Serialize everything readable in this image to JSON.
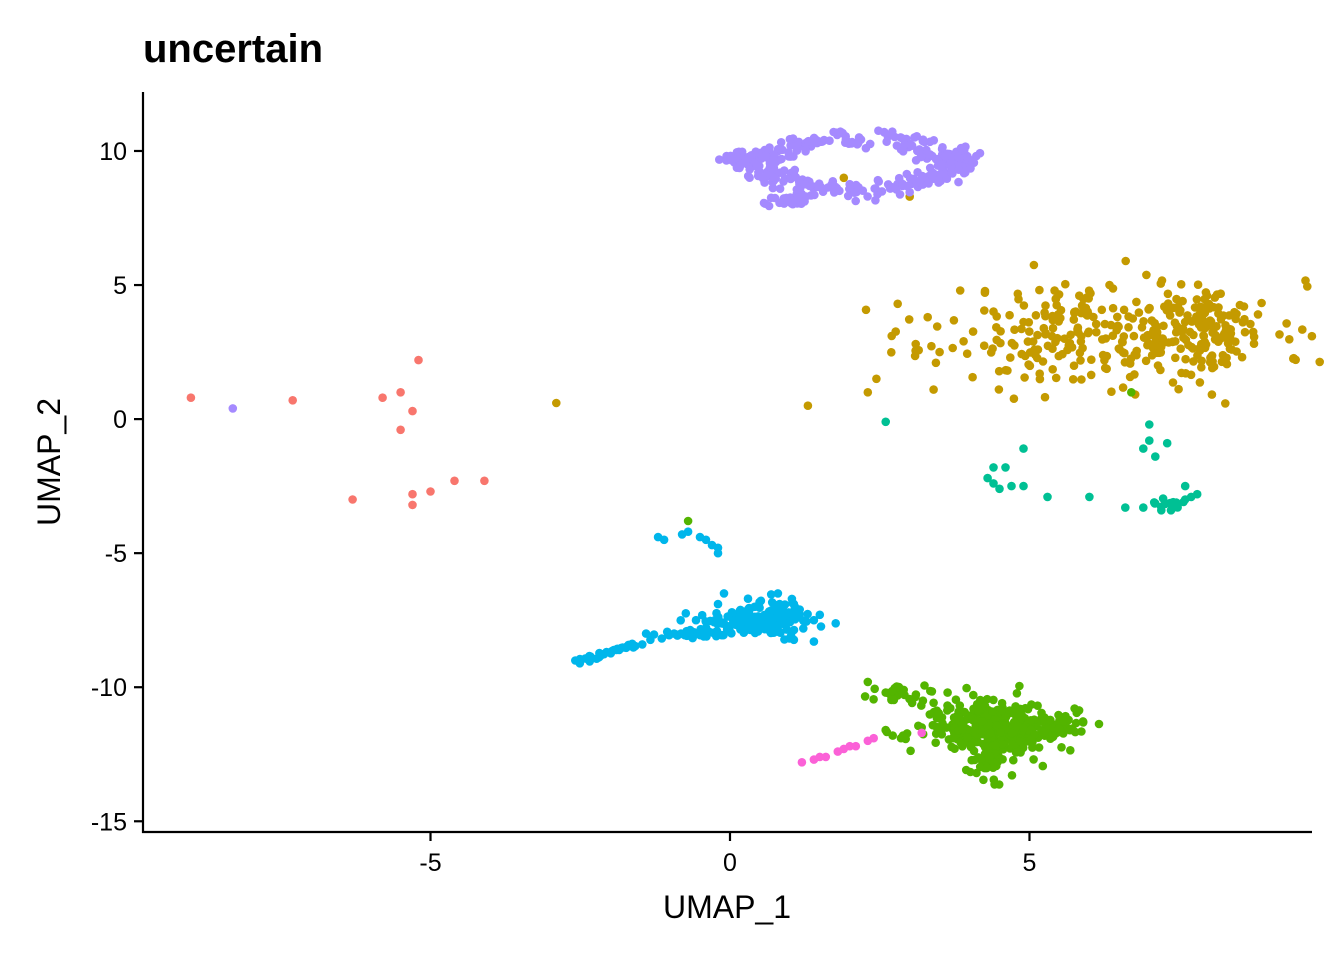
{
  "chart_data": {
    "type": "scatter",
    "title": "uncertain",
    "xlabel": "UMAP_1",
    "ylabel": "UMAP_2",
    "xlim": [
      -9.8,
      9.7
    ],
    "ylim": [
      -15.4,
      12.2
    ],
    "x_ticks": [
      -5,
      0,
      5
    ],
    "x_tick_labels": [
      "-5",
      "0",
      "5"
    ],
    "y_ticks": [
      10,
      5,
      0,
      -5,
      -10,
      -15
    ],
    "y_tick_labels": [
      "10",
      "5",
      "0",
      "-5",
      "-10",
      "-15"
    ],
    "grid": false,
    "legend": "none",
    "series": [
      {
        "color": "#F8766D",
        "points": [
          [
            -9.0,
            0.8
          ],
          [
            -7.3,
            0.7
          ],
          [
            -5.8,
            0.8
          ],
          [
            -5.5,
            1.0
          ],
          [
            -5.2,
            2.2
          ],
          [
            -5.3,
            0.3
          ],
          [
            -5.5,
            -0.4
          ],
          [
            -6.3,
            -3.0
          ],
          [
            -5.3,
            -2.8
          ],
          [
            -5.3,
            -3.2
          ],
          [
            -5.0,
            -2.7
          ],
          [
            -4.6,
            -2.3
          ],
          [
            -4.1,
            -2.3
          ]
        ],
        "clusters": []
      },
      {
        "color": "#C49A00",
        "points": [
          [
            -2.9,
            0.6
          ],
          [
            1.3,
            0.5
          ],
          [
            2.3,
            1.0
          ],
          [
            3.4,
            1.1
          ],
          [
            2.8,
            4.3
          ],
          [
            2.7,
            3.1
          ],
          [
            3.1,
            2.8
          ],
          [
            3.9,
            2.9
          ],
          [
            3.5,
            2.5
          ],
          [
            3.3,
            3.8
          ],
          [
            3.0,
            8.3
          ],
          [
            1.9,
            9.0
          ],
          [
            2.8,
            -10.3
          ]
        ],
        "clusters": [
          {
            "cx": 6.3,
            "cy": 3.2,
            "rx": 2.6,
            "ry": 1.8,
            "n": 290,
            "seed": 11
          },
          {
            "cx": 8.0,
            "cy": 3.3,
            "rx": 0.75,
            "ry": 1.6,
            "n": 80,
            "seed": 12
          }
        ]
      },
      {
        "color": "#53B400",
        "points": [
          [
            -0.7,
            -3.8
          ],
          [
            2.3,
            -9.8
          ],
          [
            2.6,
            -10.2
          ],
          [
            2.6,
            -11.6
          ],
          [
            6.7,
            1.0
          ],
          [
            3.2,
            -11.5
          ],
          [
            2.9,
            -10.1
          ]
        ],
        "clusters": [
          {
            "cx": 4.4,
            "cy": -11.5,
            "rx": 1.05,
            "ry": 0.85,
            "n": 360,
            "seed": 21
          },
          {
            "cx": 4.3,
            "cy": -12.8,
            "rx": 0.35,
            "ry": 0.8,
            "n": 40,
            "seed": 22
          },
          {
            "cx": 3.0,
            "cy": -10.3,
            "rx": 0.5,
            "ry": 0.3,
            "n": 25,
            "seed": 23
          },
          {
            "cx": 5.4,
            "cy": -11.6,
            "rx": 0.45,
            "ry": 0.5,
            "n": 40,
            "seed": 24
          }
        ]
      },
      {
        "color": "#00C094",
        "points": [
          [
            2.6,
            -0.1
          ],
          [
            7.0,
            -0.2
          ],
          [
            7.0,
            -0.8
          ],
          [
            7.3,
            -0.9
          ],
          [
            6.9,
            -1.1
          ],
          [
            7.1,
            -1.4
          ],
          [
            4.9,
            -1.1
          ],
          [
            4.4,
            -1.8
          ],
          [
            4.6,
            -1.8
          ],
          [
            4.3,
            -2.2
          ],
          [
            4.4,
            -2.4
          ],
          [
            4.5,
            -2.6
          ],
          [
            4.7,
            -2.5
          ],
          [
            4.9,
            -2.5
          ],
          [
            5.3,
            -2.9
          ],
          [
            6.0,
            -2.9
          ],
          [
            6.6,
            -3.3
          ],
          [
            6.9,
            -3.3
          ],
          [
            7.4,
            -3.1
          ],
          [
            7.2,
            -3.4
          ],
          [
            7.6,
            -2.5
          ],
          [
            7.8,
            -2.8
          ],
          [
            7.6,
            -3.0
          ],
          [
            7.7,
            -2.9
          ]
        ],
        "clusters": [
          {
            "cx": 7.3,
            "cy": -3.2,
            "rx": 0.35,
            "ry": 0.2,
            "n": 14,
            "seed": 31
          }
        ]
      },
      {
        "color": "#00B6EB",
        "points": [
          [
            -1.2,
            -4.4
          ],
          [
            -1.1,
            -4.5
          ],
          [
            -0.8,
            -4.3
          ],
          [
            -0.7,
            -4.2
          ],
          [
            -0.5,
            -4.4
          ],
          [
            -0.4,
            -4.5
          ],
          [
            -0.3,
            -4.7
          ],
          [
            -0.2,
            -4.8
          ],
          [
            -0.2,
            -5.0
          ],
          [
            -1.4,
            -8.0
          ],
          [
            1.4,
            -8.3
          ],
          [
            1.5,
            -7.3
          ],
          [
            1.4,
            -7.5
          ],
          [
            -0.1,
            -6.5
          ],
          [
            -0.2,
            -6.9
          ],
          [
            0.3,
            -6.7
          ],
          [
            0.8,
            -6.5
          ]
        ],
        "clusters": [
          {
            "cx": 0.4,
            "cy": -7.6,
            "rx": 0.95,
            "ry": 0.45,
            "n": 110,
            "seed": 41
          },
          {
            "cx": 0.8,
            "cy": -7.2,
            "rx": 0.35,
            "ry": 0.6,
            "n": 55,
            "seed": 42
          },
          {
            "cx": -0.7,
            "cy": -8.0,
            "rx": 0.5,
            "ry": 0.18,
            "n": 30,
            "seed": 43
          }
        ],
        "lines": [
          {
            "x0": -2.6,
            "y0": -9.1,
            "x1": -1.3,
            "y1": -8.2,
            "n": 38,
            "jitter": 0.05,
            "seed": 44
          }
        ]
      },
      {
        "color": "#A58AFF",
        "points": [
          [
            -8.3,
            0.4
          ]
        ],
        "clusters": [
          {
            "cx": 0.1,
            "cy": 9.7,
            "rx": 0.2,
            "ry": 0.3,
            "n": 30,
            "seed": 52
          },
          {
            "cx": 3.8,
            "cy": 9.8,
            "rx": 0.35,
            "ry": 0.3,
            "n": 45,
            "seed": 53
          },
          {
            "cx": 1.0,
            "cy": 8.2,
            "rx": 0.35,
            "ry": 0.25,
            "n": 30,
            "seed": 54
          }
        ],
        "rings": [
          {
            "cx": 2.1,
            "cy": 9.5,
            "rx": 1.55,
            "ry": 0.95,
            "n": 280,
            "jitter": 0.18,
            "seed": 51
          }
        ]
      },
      {
        "color": "#FB61D7",
        "points": [
          [
            1.2,
            -12.8
          ],
          [
            1.4,
            -12.7
          ],
          [
            1.5,
            -12.6
          ],
          [
            1.6,
            -12.6
          ],
          [
            1.8,
            -12.4
          ],
          [
            1.9,
            -12.3
          ],
          [
            2.0,
            -12.2
          ],
          [
            2.1,
            -12.2
          ],
          [
            2.3,
            -12.0
          ],
          [
            2.4,
            -11.9
          ],
          [
            3.2,
            -11.7
          ]
        ],
        "clusters": []
      }
    ]
  }
}
